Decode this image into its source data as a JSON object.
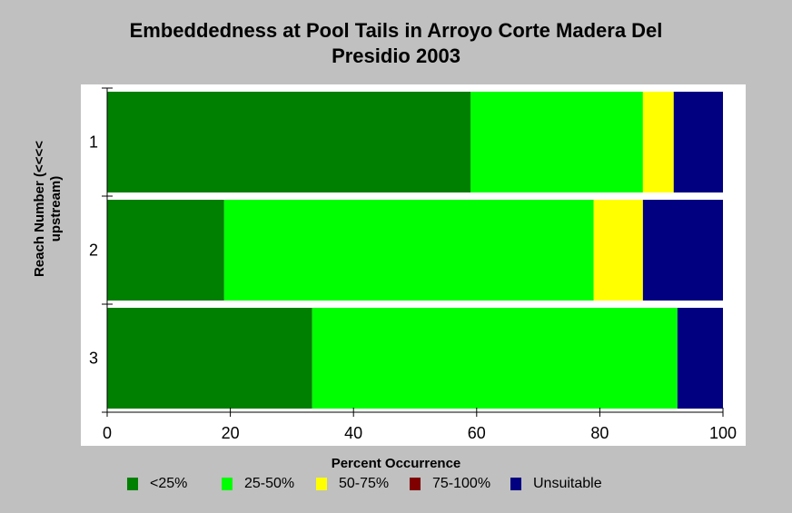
{
  "chart_data": {
    "type": "bar",
    "orientation": "horizontal",
    "stacked": true,
    "title": [
      "Embeddedness at Pool Tails in Arroyo Corte Madera Del",
      "Presidio 2003"
    ],
    "xlabel": "Percent Occurrence",
    "ylabel": [
      "Reach Number (<<<<",
      "upstream)"
    ],
    "categories": [
      "1",
      "2",
      "3"
    ],
    "xlim": [
      0,
      100
    ],
    "xticks": [
      0,
      20,
      40,
      60,
      80,
      100
    ],
    "grid": false,
    "legend_position": "bottom",
    "series": [
      {
        "name": "<25%",
        "color": "#008000",
        "values": [
          59,
          19,
          33.3
        ]
      },
      {
        "name": "25-50%",
        "color": "#00ff00",
        "values": [
          28,
          60,
          59.3
        ]
      },
      {
        "name": "50-75%",
        "color": "#ffff00",
        "values": [
          5,
          8,
          0
        ]
      },
      {
        "name": "75-100%",
        "color": "#800000",
        "values": [
          0,
          0,
          0
        ]
      },
      {
        "name": "Unsuitable",
        "color": "#000080",
        "values": [
          8,
          13,
          7.4
        ]
      }
    ]
  }
}
